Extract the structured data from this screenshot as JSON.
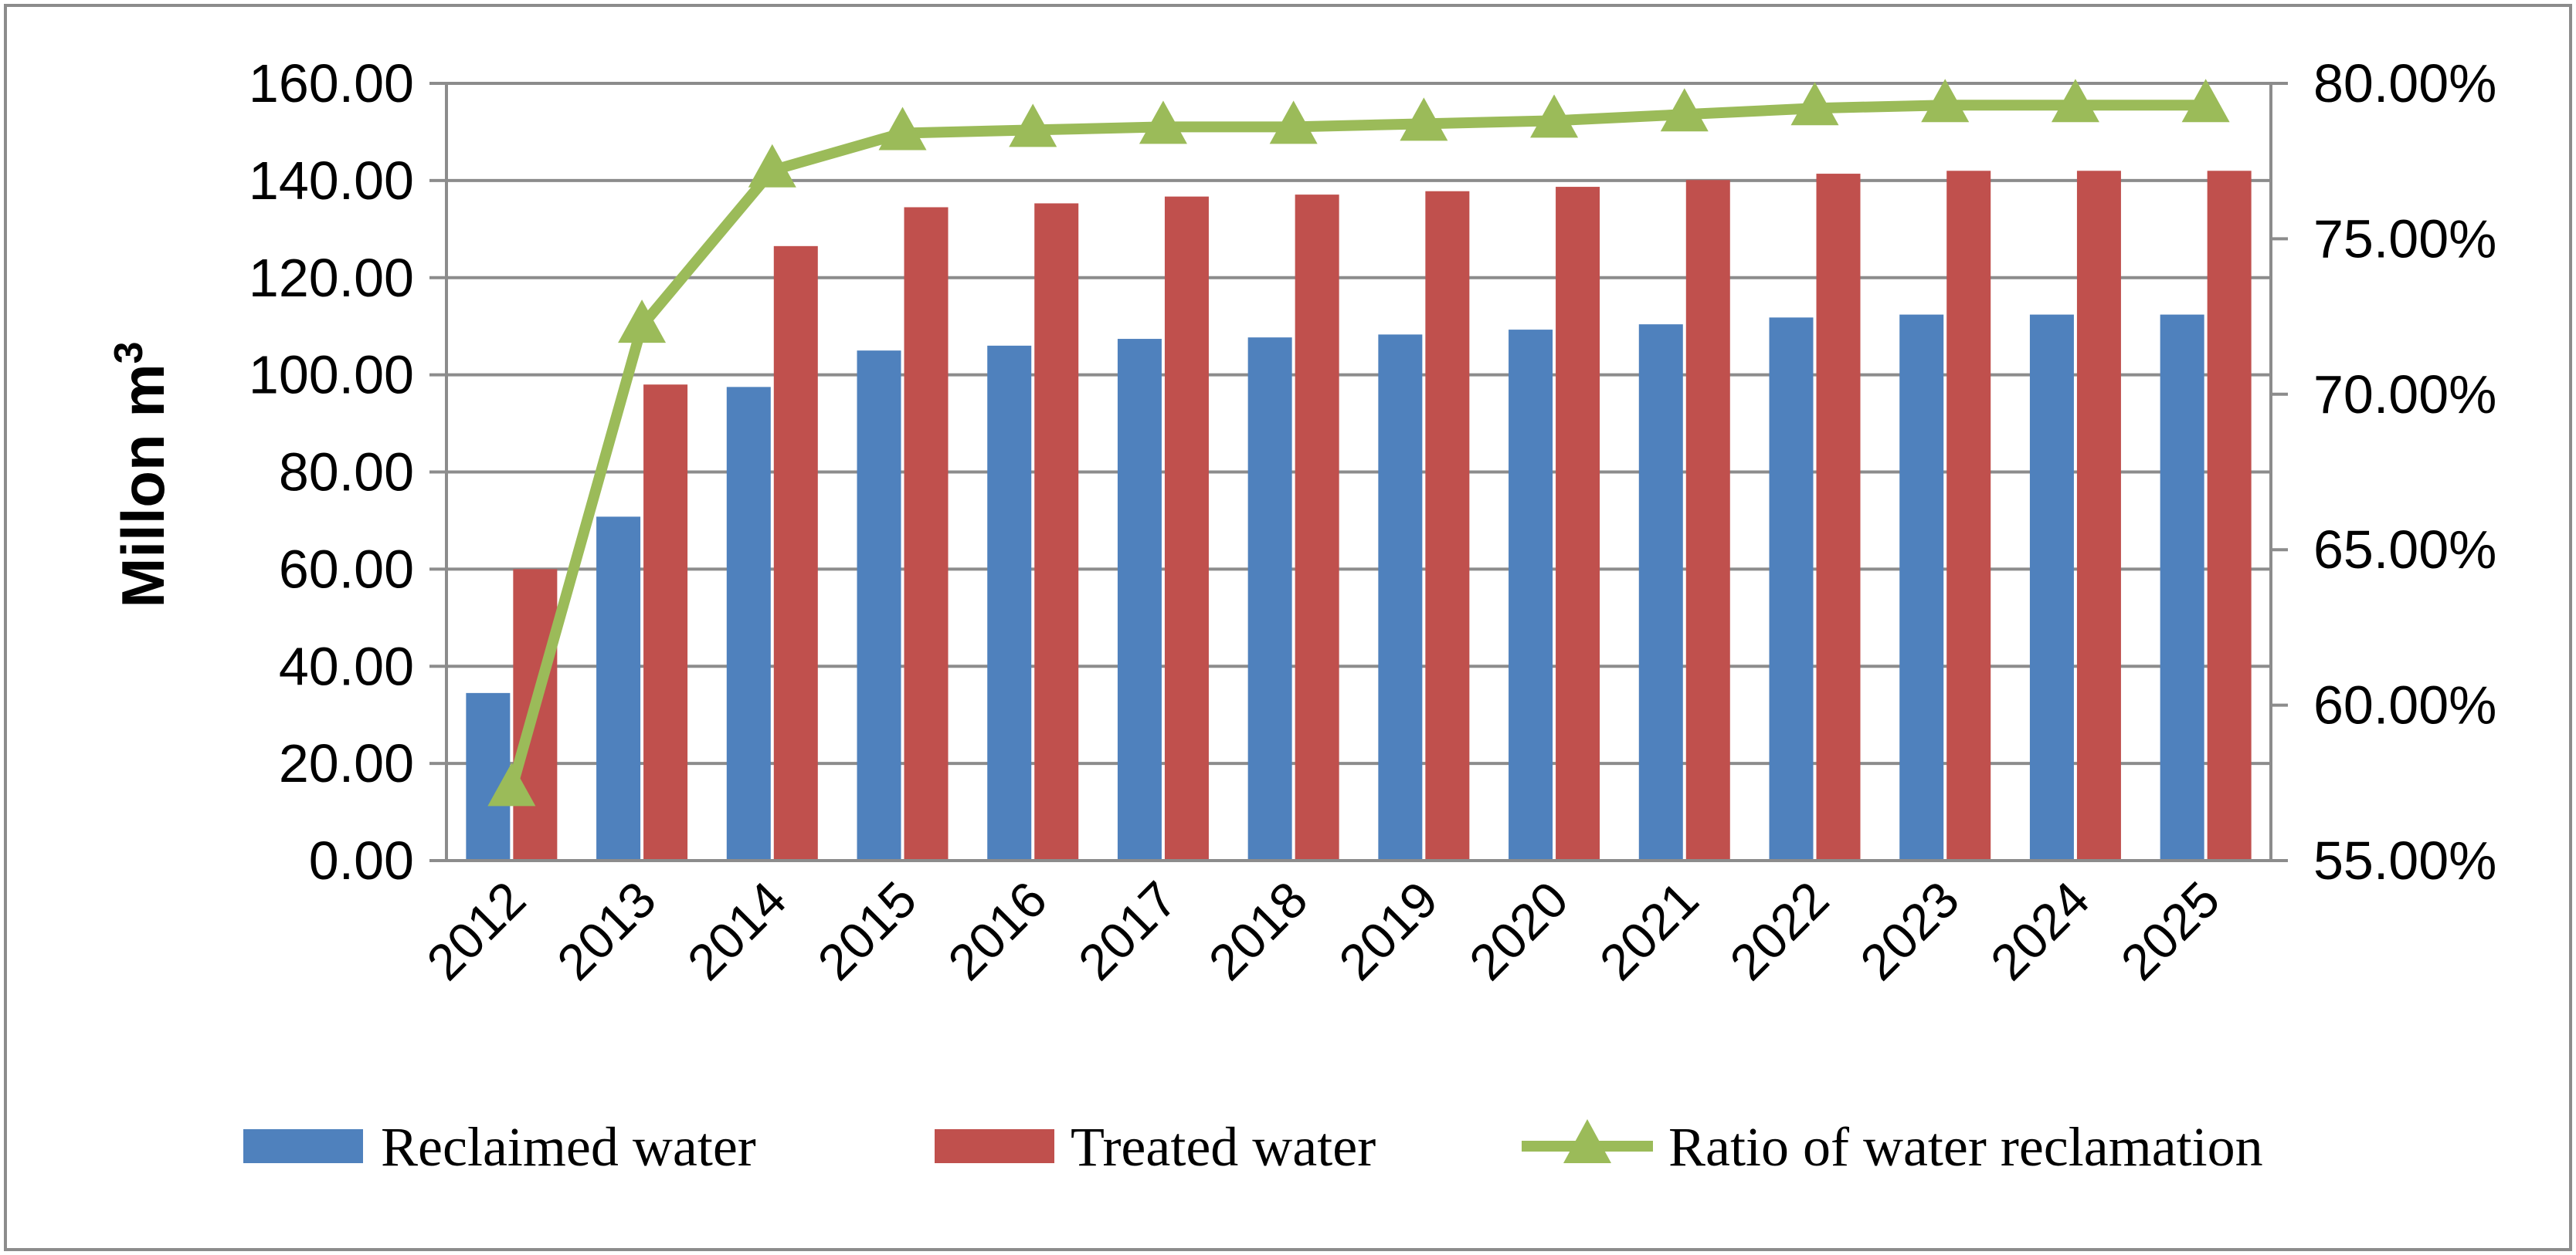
{
  "chart_data": {
    "type": "bar",
    "categories": [
      "2012",
      "2013",
      "2014",
      "2015",
      "2016",
      "2017",
      "2018",
      "2019",
      "2020",
      "2021",
      "2022",
      "2023",
      "2024",
      "2025"
    ],
    "series": [
      {
        "name": "Reclaimed water",
        "kind": "bar",
        "axis": "left",
        "color": "#4F81BD",
        "values": [
          34.5,
          70.8,
          97.5,
          105.0,
          106.0,
          107.4,
          107.7,
          108.3,
          109.3,
          110.4,
          111.8,
          112.4,
          112.4,
          112.4
        ]
      },
      {
        "name": "Treated water",
        "kind": "bar",
        "axis": "left",
        "color": "#C0504D",
        "values": [
          60.0,
          98.0,
          126.5,
          134.5,
          135.3,
          136.7,
          137.1,
          137.8,
          138.7,
          140.1,
          141.4,
          142.0,
          142.0,
          142.0
        ]
      },
      {
        "name": "Ratio of water reclamation",
        "kind": "line",
        "axis": "right",
        "color": "#9BBB59",
        "values": [
          57.3,
          72.2,
          77.2,
          78.4,
          78.5,
          78.6,
          78.6,
          78.7,
          78.8,
          79.0,
          79.2,
          79.3,
          79.3,
          79.3
        ]
      }
    ],
    "ylabel_main": "Millon m",
    "ylabel_sup": "3",
    "xlabel": "",
    "ylim": [
      0,
      160
    ],
    "y_ticks": [
      "0.00",
      "20.00",
      "40.00",
      "60.00",
      "80.00",
      "100.00",
      "120.00",
      "140.00",
      "160.00"
    ],
    "ylim_right": [
      55,
      80
    ],
    "y_ticks_right": [
      "55.00%",
      "60.00%",
      "65.00%",
      "70.00%",
      "75.00%",
      "80.00%"
    ],
    "grid": true,
    "legend_position": "bottom"
  }
}
